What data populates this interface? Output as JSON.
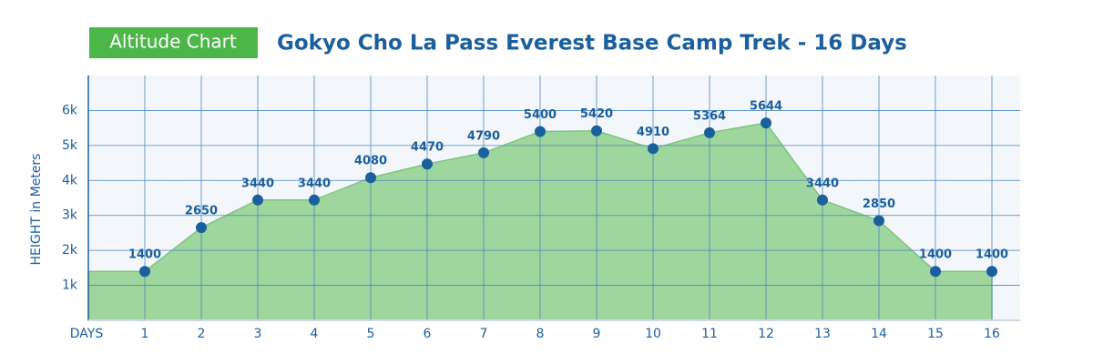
{
  "chart_data": {
    "type": "area",
    "badge": "Altitude Chart",
    "title": "Gokyo Cho La Pass Everest Base Camp Trek - 16 Days",
    "y_label": "HEIGHT in Meters",
    "x_label": "DAYS",
    "x": [
      1,
      2,
      3,
      4,
      5,
      6,
      7,
      8,
      9,
      10,
      11,
      12,
      13,
      14,
      15,
      16
    ],
    "values": [
      1400,
      2650,
      3440,
      3440,
      4080,
      4470,
      4790,
      5400,
      5420,
      4910,
      5364,
      5644,
      3440,
      2850,
      1400,
      1400
    ],
    "xlim": [
      0,
      16.5
    ],
    "ylim": [
      0,
      7000
    ],
    "yticks": [
      {
        "value": 1000,
        "label": "1k"
      },
      {
        "value": 2000,
        "label": "2k"
      },
      {
        "value": 3000,
        "label": "3k"
      },
      {
        "value": 4000,
        "label": "4k"
      },
      {
        "value": 5000,
        "label": "5k"
      },
      {
        "value": 6000,
        "label": "6k"
      }
    ],
    "grid": true,
    "color": "#9ed69e",
    "marker_color": "#1b5f9c"
  }
}
